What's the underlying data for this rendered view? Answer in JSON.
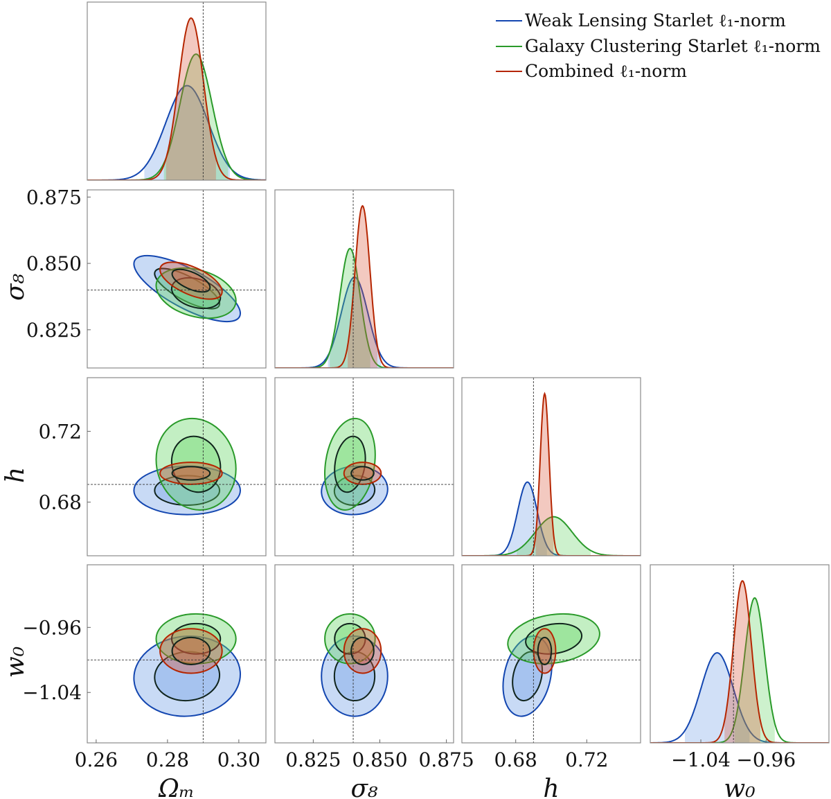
{
  "chart_data": {
    "type": "corner",
    "title": "",
    "legend_position": "top-right",
    "legend": [
      {
        "label": "Weak Lensing Starlet ℓ₁-norm",
        "color": "#1346b0"
      },
      {
        "label": "Galaxy Clustering Starlet ℓ₁-norm",
        "color": "#2a9a2a"
      },
      {
        "label": "Combined ℓ₁-norm",
        "color": "#b52500"
      }
    ],
    "params": [
      {
        "key": "Om",
        "label": "Ωₘ",
        "range": [
          0.2575,
          0.3076
        ],
        "truth": 0.29,
        "ticks": [
          0.26,
          0.28,
          0.3
        ],
        "tick_labels": [
          "0.26",
          "0.28",
          "0.30"
        ]
      },
      {
        "key": "s8",
        "label": "σ₈",
        "range": [
          0.8106,
          0.8777
        ],
        "truth": 0.84,
        "ticks": [
          0.825,
          0.85,
          0.875
        ],
        "tick_labels": [
          "0.825",
          "0.850",
          "0.875"
        ]
      },
      {
        "key": "h",
        "label": "h",
        "range": [
          0.6497,
          0.7503
        ],
        "truth": 0.69,
        "ticks": [
          0.68,
          0.72
        ],
        "tick_labels": [
          "0.68",
          "0.72"
        ]
      },
      {
        "key": "w0",
        "label": "w₀",
        "range": [
          -1.102,
          -0.883
        ],
        "truth": -1.0,
        "ticks": [
          -1.04,
          -0.96
        ],
        "tick_labels": [
          "−1.04",
          "−0.96"
        ]
      }
    ],
    "contour_levels": [
      0.68,
      0.95
    ],
    "series": [
      {
        "name": "Weak Lensing Starlet ℓ₁-norm",
        "color": "#1346b0",
        "fill": "#6f9fe6",
        "mean": {
          "Om": 0.2855,
          "s8": 0.8405,
          "h": 0.6866,
          "w0": -1.02
        },
        "sigma": {
          "Om": 0.006,
          "s8": 0.005,
          "h": 0.0055,
          "w0": 0.0198
        },
        "corr": {
          "Om-s8": -0.75,
          "Om-h": 0.0,
          "Om-w0": 0.05,
          "s8-h": 0.05,
          "s8-w0": 0.0,
          "h-w0": 0.25
        }
      },
      {
        "name": "Galaxy Clustering Starlet ℓ₁-norm",
        "color": "#2a9a2a",
        "fill": "#62d462",
        "mean": {
          "Om": 0.288,
          "s8": 0.8388,
          "h": 0.7014,
          "w0": -0.974
        },
        "sigma": {
          "Om": 0.0045,
          "s8": 0.0038,
          "h": 0.0104,
          "w0": 0.0123
        },
        "corr": {
          "Om-s8": -0.3,
          "Om-h": -0.1,
          "Om-w0": 0.0,
          "s8-h": 0.2,
          "s8-w0": 0.0,
          "h-w0": 0.2
        }
      },
      {
        "name": "Combined ℓ₁-norm",
        "color": "#b52500",
        "fill": "#d9573a",
        "mean": {
          "Om": 0.2866,
          "s8": 0.8435,
          "h": 0.6963,
          "w0": -0.989
        },
        "sigma": {
          "Om": 0.0035,
          "s8": 0.0028,
          "h": 0.0025,
          "w0": 0.011
        },
        "corr": {
          "Om-s8": -0.6,
          "Om-h": 0.0,
          "Om-w0": 0.0,
          "s8-h": 0.0,
          "s8-w0": 0.0,
          "h-w0": 0.0
        }
      }
    ]
  }
}
